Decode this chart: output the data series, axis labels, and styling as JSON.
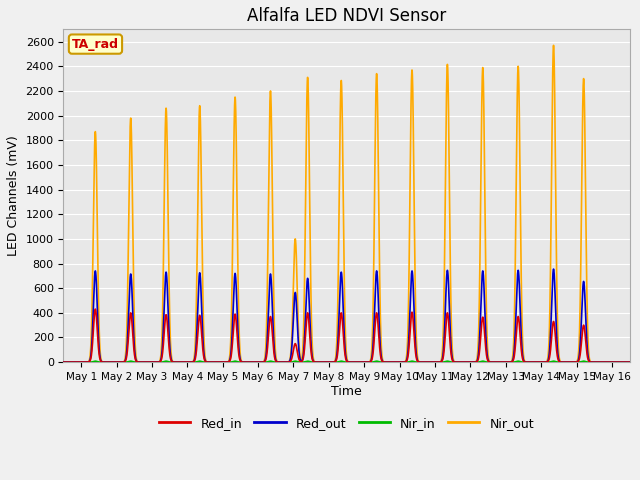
{
  "title": "Alfalfa LED NDVI Sensor",
  "ylabel": "LED Channels (mV)",
  "xlabel": "Time",
  "annotation": "TA_rad",
  "annotation_color": "#cc0000",
  "annotation_bg": "#ffffcc",
  "annotation_border": "#cc9900",
  "fig_bg": "#f0f0f0",
  "plot_bg": "#e8e8e8",
  "grid_color": "#ffffff",
  "ylim": [
    0,
    2700
  ],
  "xlim": [
    0.5,
    16.5
  ],
  "series": {
    "Red_in": {
      "color": "#dd0000",
      "lw": 1.2
    },
    "Red_out": {
      "color": "#0000cc",
      "lw": 1.2
    },
    "Nir_in": {
      "color": "#00bb00",
      "lw": 1.2
    },
    "Nir_out": {
      "color": "#ffaa00",
      "lw": 1.2
    }
  },
  "xtick_labels": [
    "May 1",
    "May 2",
    "May 3",
    "May 4",
    "May 5",
    "May 6",
    "May 7",
    "May 8",
    "May 9",
    "May 10",
    "May 11",
    "May 12",
    "May 13",
    "May 14",
    "May 15",
    "May 16"
  ],
  "xtick_positions": [
    1,
    2,
    3,
    4,
    5,
    6,
    7,
    8,
    9,
    10,
    11,
    12,
    13,
    14,
    15,
    16
  ],
  "pulses": [
    {
      "day": 1.4,
      "red_in": 430,
      "red_out": 740,
      "nir_in": 8,
      "nir_out": 1870
    },
    {
      "day": 2.4,
      "red_in": 400,
      "red_out": 715,
      "nir_in": 8,
      "nir_out": 1980
    },
    {
      "day": 3.4,
      "red_in": 385,
      "red_out": 730,
      "nir_in": 8,
      "nir_out": 2060
    },
    {
      "day": 4.35,
      "red_in": 380,
      "red_out": 725,
      "nir_in": 8,
      "nir_out": 2080
    },
    {
      "day": 5.35,
      "red_in": 390,
      "red_out": 720,
      "nir_in": 8,
      "nir_out": 2150
    },
    {
      "day": 6.35,
      "red_in": 370,
      "red_out": 715,
      "nir_in": 8,
      "nir_out": 2200
    },
    {
      "day": 7.05,
      "red_in": 150,
      "red_out": 565,
      "nir_in": 8,
      "nir_out": 1000
    },
    {
      "day": 7.4,
      "red_in": 400,
      "red_out": 680,
      "nir_in": 8,
      "nir_out": 2310
    },
    {
      "day": 8.35,
      "red_in": 400,
      "red_out": 730,
      "nir_in": 8,
      "nir_out": 2285
    },
    {
      "day": 9.35,
      "red_in": 400,
      "red_out": 740,
      "nir_in": 8,
      "nir_out": 2340
    },
    {
      "day": 10.35,
      "red_in": 405,
      "red_out": 740,
      "nir_in": 8,
      "nir_out": 2370
    },
    {
      "day": 11.35,
      "red_in": 400,
      "red_out": 745,
      "nir_in": 8,
      "nir_out": 2415
    },
    {
      "day": 12.35,
      "red_in": 365,
      "red_out": 740,
      "nir_in": 8,
      "nir_out": 2390
    },
    {
      "day": 13.35,
      "red_in": 370,
      "red_out": 745,
      "nir_in": 8,
      "nir_out": 2400
    },
    {
      "day": 14.35,
      "red_in": 330,
      "red_out": 755,
      "nir_in": 8,
      "nir_out": 2570
    },
    {
      "day": 15.2,
      "red_in": 300,
      "red_out": 655,
      "nir_in": 8,
      "nir_out": 2300
    }
  ],
  "pulse_sigma": 0.055,
  "legend_entries": [
    "Red_in",
    "Red_out",
    "Nir_in",
    "Nir_out"
  ],
  "legend_colors": [
    "#dd0000",
    "#0000cc",
    "#00bb00",
    "#ffaa00"
  ],
  "figsize": [
    6.4,
    4.8
  ],
  "dpi": 100
}
